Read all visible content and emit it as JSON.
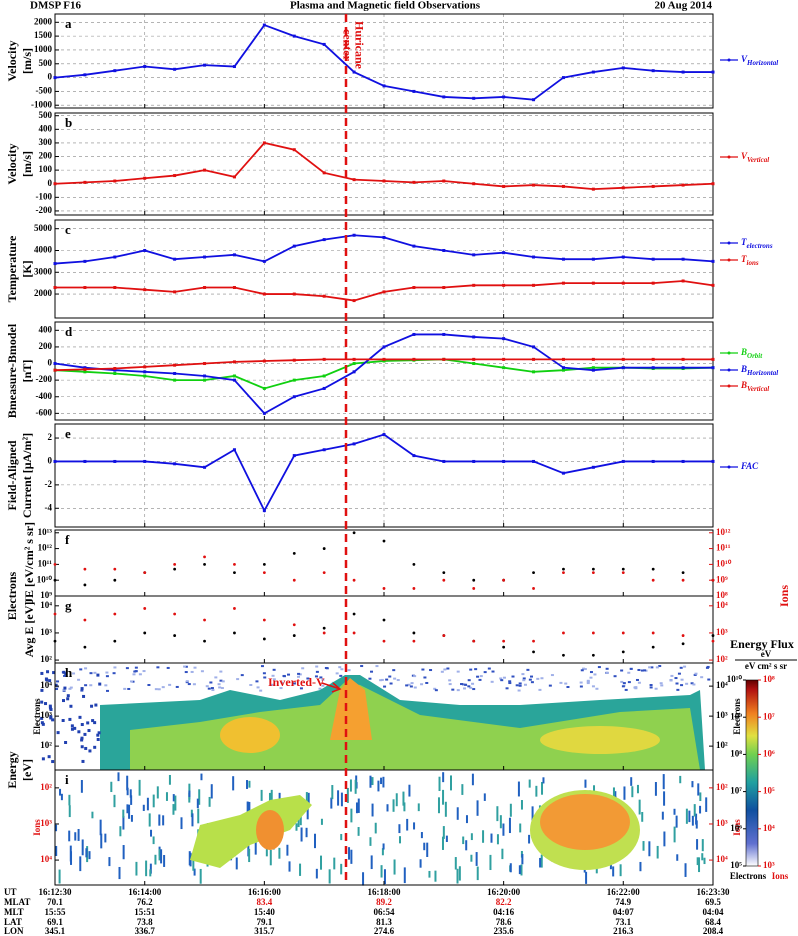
{
  "header": {
    "left": "DMSP F16",
    "title": "Plasma and Magnetic field Observations",
    "right": "20 Aug 2014"
  },
  "annotations": {
    "hurricane": [
      "Huricane",
      "center"
    ],
    "inverted_v": "Inverted-V"
  },
  "x": [
    "16:12:30",
    null,
    null,
    "16:14:00",
    null,
    null,
    null,
    "16:16:00",
    null,
    null,
    null,
    "16:18:00",
    null,
    null,
    null,
    "16:20:00",
    null,
    null,
    null,
    "16:22:00",
    null,
    null,
    "16:23:30"
  ],
  "chart_data": [
    {
      "type": "line",
      "letter": "a",
      "ylabel": [
        "Velocity",
        "[m/s]"
      ],
      "ylim": [
        -1100,
        2300
      ],
      "yticks": [
        -1000,
        -500,
        0,
        500,
        1000,
        1500,
        2000
      ],
      "grid": true,
      "series": [
        {
          "name": "V",
          "sub": "Horizontal",
          "color": "#1010e0",
          "values": [
            0,
            100,
            250,
            400,
            300,
            450,
            400,
            1900,
            1500,
            1200,
            200,
            -300,
            -500,
            -700,
            -750,
            -700,
            -800,
            0,
            200,
            350,
            250,
            200,
            200
          ]
        }
      ]
    },
    {
      "type": "line",
      "letter": "b",
      "ylabel": [
        "Velocity",
        "[m/s]"
      ],
      "ylim": [
        -230,
        520
      ],
      "yticks": [
        -200,
        -100,
        0,
        100,
        200,
        300,
        400,
        500
      ],
      "grid": true,
      "series": [
        {
          "name": "V",
          "sub": "Vertical",
          "color": "#e01010",
          "values": [
            0,
            10,
            20,
            40,
            60,
            100,
            50,
            300,
            250,
            80,
            30,
            20,
            10,
            20,
            0,
            -20,
            -10,
            -20,
            -40,
            -30,
            -20,
            -10,
            0
          ]
        }
      ]
    },
    {
      "type": "line",
      "letter": "c",
      "ylabel": [
        "Temperature",
        "[K]"
      ],
      "ylim": [
        900,
        5400
      ],
      "yticks": [
        2000,
        3000,
        4000,
        5000
      ],
      "grid": true,
      "series": [
        {
          "name": "T",
          "sub": "electrons",
          "color": "#1010e0",
          "values": [
            3400,
            3500,
            3700,
            4000,
            3600,
            3700,
            3800,
            3500,
            4200,
            4500,
            4700,
            4600,
            4200,
            4000,
            3800,
            3900,
            3700,
            3600,
            3600,
            3700,
            3600,
            3600,
            3500
          ]
        },
        {
          "name": "T",
          "sub": "ions",
          "color": "#e01010",
          "values": [
            2300,
            2300,
            2300,
            2200,
            2100,
            2300,
            2300,
            2000,
            2000,
            1900,
            1700,
            2100,
            2300,
            2300,
            2400,
            2400,
            2400,
            2500,
            2500,
            2500,
            2500,
            2600,
            2400
          ]
        }
      ]
    },
    {
      "type": "line",
      "letter": "d",
      "ylabel": [
        "Bmeasure-Bmodel",
        "[nT]"
      ],
      "ylim": [
        -680,
        500
      ],
      "yticks": [
        -600,
        -400,
        -200,
        0,
        200,
        400
      ],
      "grid": true,
      "series": [
        {
          "name": "B",
          "sub": "Orbit",
          "color": "#10d010",
          "values": [
            -80,
            -100,
            -120,
            -150,
            -200,
            -200,
            -150,
            -300,
            -200,
            -150,
            0,
            30,
            40,
            50,
            0,
            -50,
            -100,
            -80,
            -50,
            -50,
            -60,
            -60,
            -50
          ]
        },
        {
          "name": "B",
          "sub": "Horizontal",
          "color": "#1010e0",
          "values": [
            0,
            -50,
            -80,
            -100,
            -120,
            -150,
            -200,
            -600,
            -400,
            -300,
            -100,
            200,
            350,
            350,
            320,
            300,
            200,
            -50,
            -80,
            -50,
            -50,
            -50,
            -50
          ]
        },
        {
          "name": "B",
          "sub": "Vertical",
          "color": "#e01010",
          "values": [
            -80,
            -70,
            -60,
            -40,
            -20,
            0,
            20,
            30,
            40,
            50,
            50,
            50,
            50,
            50,
            50,
            50,
            50,
            50,
            50,
            50,
            50,
            50,
            50
          ]
        }
      ]
    },
    {
      "type": "line",
      "letter": "e",
      "ylabel": [
        "Field-Aligned",
        "Current [μA/m²]"
      ],
      "ylim": [
        -5.6,
        3.2
      ],
      "yticks": [
        -4,
        -2,
        0,
        2
      ],
      "grid": true,
      "series": [
        {
          "name": "FAC",
          "color": "#1010e0",
          "values": [
            0,
            0,
            0,
            0,
            -0.2,
            -0.5,
            1,
            -4.2,
            0.5,
            1,
            1.5,
            2.3,
            0.5,
            0,
            0,
            0,
            0,
            -1,
            -0.5,
            0,
            0,
            0,
            0
          ]
        }
      ]
    },
    {
      "type": "scatter",
      "letter": "f",
      "group_label": [
        "Electrons"
      ],
      "ylabel": [
        "JE [eV/cm² s sr]"
      ],
      "y2label": "Ions",
      "log": true,
      "grid": false,
      "ylim": [
        1000000000.0,
        15000000000000.0
      ],
      "yticks": [
        {
          "value": 1000000000.0,
          "label": "10⁹"
        },
        {
          "value": 10000000000.0,
          "label": "10¹⁰"
        },
        {
          "value": 100000000000.0,
          "label": "10¹¹"
        },
        {
          "value": 1000000000000.0,
          "label": "10¹²"
        },
        {
          "value": 10000000000000.0,
          "label": "10¹³"
        }
      ],
      "y2lim": [
        100000000.0,
        1500000000000.0
      ],
      "y2ticks": [
        {
          "value": 100000000.0,
          "label": "10⁸"
        },
        {
          "value": 1000000000.0,
          "label": "10⁹"
        },
        {
          "value": 10000000000.0,
          "label": "10¹⁰"
        },
        {
          "value": 100000000000.0,
          "label": "10¹¹"
        },
        {
          "value": 1000000000000.0,
          "label": "10¹²"
        }
      ],
      "y2color": "#e01010",
      "series": [
        {
          "color": "#000000",
          "values": [
            10000000000.0,
            5000000000.0,
            10000000000.0,
            30000000000.0,
            50000000000.0,
            100000000000.0,
            30000000000.0,
            100000000000.0,
            500000000000.0,
            1000000000000.0,
            10000000000000.0,
            3000000000000.0,
            100000000000.0,
            30000000000.0,
            10000000000.0,
            10000000000.0,
            30000000000.0,
            50000000000.0,
            50000000000.0,
            50000000000.0,
            50000000000.0,
            30000000000.0,
            10000000000.0
          ]
        },
        {
          "color": "#e01010",
          "axis": "y2",
          "values": [
            10000000000.0,
            5000000000.0,
            5000000000.0,
            3000000000.0,
            10000000000.0,
            30000000000.0,
            10000000000.0,
            3000000000.0,
            1000000000.0,
            3000000000.0,
            1000000000.0,
            300000000.0,
            300000000.0,
            1000000000.0,
            300000000.0,
            1000000000.0,
            300000000.0,
            3000000000.0,
            3000000000.0,
            3000000000.0,
            1000000000.0,
            1000000000.0,
            1000000000.0
          ]
        }
      ]
    },
    {
      "type": "scatter",
      "letter": "g",
      "ylabel": [
        "Avg E [eV]"
      ],
      "log": true,
      "grid": false,
      "ylim": [
        78,
        23000
      ],
      "yticks": [
        {
          "value": 100,
          "label": "10²"
        },
        {
          "value": 1000,
          "label": "10³"
        },
        {
          "value": 10000,
          "label": "10⁴"
        }
      ],
      "y2lim": [
        78,
        23000
      ],
      "y2ticks": [
        {
          "value": 100,
          "label": "10²"
        },
        {
          "value": 1000,
          "label": "10³"
        },
        {
          "value": 10000,
          "label": "10⁴"
        }
      ],
      "y2color": "#e01010",
      "series": [
        {
          "color": "#000000",
          "values": [
            500,
            300,
            500,
            1000,
            800,
            500,
            1000,
            600,
            800,
            1500,
            5000,
            3000,
            1000,
            800,
            500,
            300,
            200,
            150,
            150,
            200,
            300,
            400,
            800
          ]
        },
        {
          "color": "#e01010",
          "axis": "y2",
          "values": [
            5000,
            3000,
            5000,
            8000,
            5000,
            3000,
            8000,
            3000,
            2000,
            1000,
            1000,
            500,
            500,
            800,
            500,
            500,
            500,
            1000,
            1000,
            1000,
            1000,
            800,
            500
          ]
        }
      ]
    },
    {
      "type": "spectrogram",
      "letter": "h",
      "group_label": [
        "Energy",
        "[eV]"
      ],
      "inner_label": "Electrons",
      "tick_color": "#000000",
      "log": true,
      "ylim": [
        16,
        59000
      ],
      "yticks": [
        {
          "value": 100,
          "label": "10²"
        },
        {
          "value": 1000,
          "label": "10³"
        },
        {
          "value": 10000,
          "label": "10⁴"
        }
      ]
    },
    {
      "type": "spectrogram",
      "letter": "i",
      "inner_label": "Ions",
      "tick_color": "#e01010",
      "log": true,
      "inverted": true,
      "ylim": [
        32,
        49000
      ],
      "yticks": [
        {
          "value": 100,
          "label": "10²"
        },
        {
          "value": 1000,
          "label": "10³"
        },
        {
          "value": 10000,
          "label": "10⁴"
        }
      ]
    }
  ],
  "colorbar": {
    "title": "Energy Flux",
    "unit_top": "eV",
    "unit_bottom": "eV cm² s sr",
    "label_electrons": "Electrons",
    "label_ions": "Ions",
    "color_ions": "#e01010",
    "ticks_electrons": [
      {
        "value": 100000.0,
        "label": "10⁵"
      },
      {
        "value": 1000000.0,
        "label": "10⁶"
      },
      {
        "value": 10000000.0,
        "label": "10⁷"
      },
      {
        "value": 100000000.0,
        "label": "10⁸"
      },
      {
        "value": 1000000000.0,
        "label": "10⁹"
      },
      {
        "value": 10000000000.0,
        "label": "10¹⁰"
      }
    ],
    "ticks_ions": [
      {
        "value": 1000.0,
        "label": "10³"
      },
      {
        "value": 10000.0,
        "label": "10⁴"
      },
      {
        "value": 100000.0,
        "label": "10⁵"
      },
      {
        "value": 1000000.0,
        "label": "10⁶"
      },
      {
        "value": 10000000.0,
        "label": "10⁷"
      },
      {
        "value": 100000000.0,
        "label": "10⁸"
      }
    ]
  },
  "orbit_table": {
    "ut_label": "UT",
    "rows": [
      {
        "label": "MLAT",
        "values": [
          "70.1",
          "76.2",
          "83.4",
          "89.2",
          "82.2",
          "74.9",
          "69.5"
        ]
      },
      {
        "label": "MLT",
        "values": [
          "15:55",
          "15:51",
          "15:40",
          "06:54",
          "04:16",
          "04:07",
          "04:04"
        ]
      },
      {
        "label": "LAT",
        "values": [
          "69.1",
          "73.8",
          "79.1",
          "81.3",
          "78.6",
          "73.1",
          "68.4"
        ]
      },
      {
        "label": "LON",
        "values": [
          "345.1",
          "336.7",
          "315.7",
          "274.6",
          "235.6",
          "216.3",
          "208.4"
        ]
      }
    ],
    "highlight": {
      "row": 0,
      "columns": [
        2,
        3,
        4
      ],
      "color": "#e01010"
    }
  }
}
